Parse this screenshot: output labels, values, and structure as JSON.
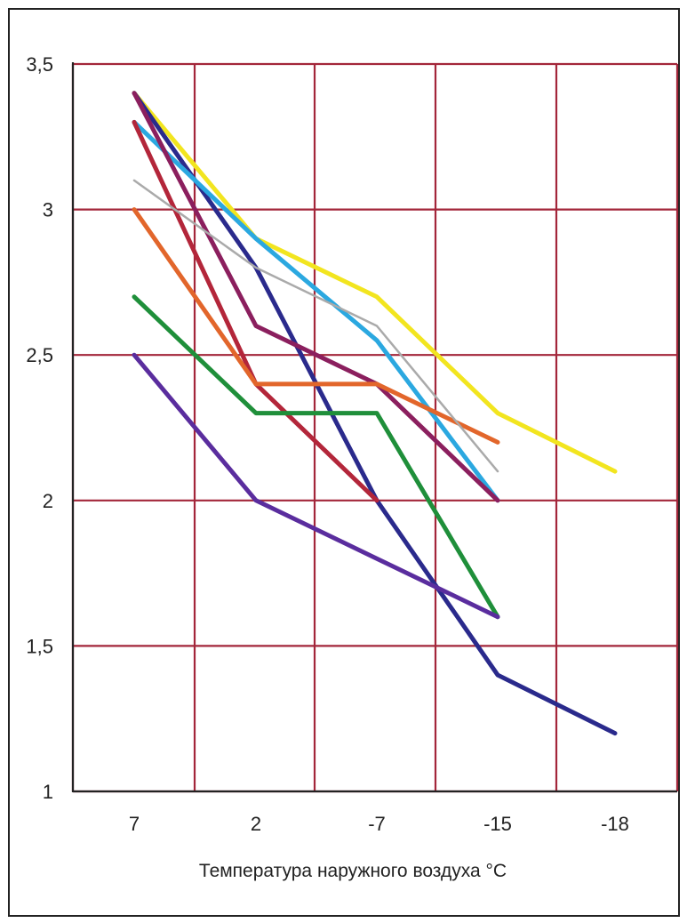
{
  "chart_data": {
    "type": "line",
    "title": "",
    "xlabel": "Температура наружного воздуха °С",
    "ylabel": "",
    "categories": [
      "7",
      "2",
      "-7",
      "-15",
      "-18"
    ],
    "y_tick_labels": [
      "1",
      "1,5",
      "2",
      "2,5",
      "3",
      "3,5"
    ],
    "y_ticks": [
      1,
      1.5,
      2,
      2.5,
      3,
      3.5
    ],
    "ylim": [
      1,
      3.5
    ],
    "grid": true,
    "legend": "none",
    "series": [
      {
        "color": "#f2e51f",
        "values": [
          3.4,
          2.9,
          2.7,
          2.3,
          2.1
        ]
      },
      {
        "color": "#2a2a8c",
        "values": [
          3.4,
          2.8,
          2.0,
          1.4,
          1.2
        ]
      },
      {
        "color": "#2ba8e0",
        "values": [
          3.3,
          2.9,
          2.55,
          2.0,
          null
        ]
      },
      {
        "color": "#8b1f5e",
        "values": [
          3.4,
          2.6,
          2.4,
          2.0,
          null
        ]
      },
      {
        "color": "#b3263a",
        "values": [
          3.3,
          2.4,
          2.0,
          null,
          null
        ]
      },
      {
        "color": "#e2662b",
        "values": [
          3.0,
          2.4,
          2.4,
          2.2,
          null
        ]
      },
      {
        "color": "#aaaaaa",
        "values": [
          3.1,
          2.8,
          2.6,
          2.1,
          null
        ]
      },
      {
        "color": "#1f8f3a",
        "values": [
          2.7,
          2.3,
          2.3,
          1.6,
          null
        ]
      },
      {
        "color": "#5a2d9e",
        "values": [
          2.5,
          2.0,
          1.8,
          1.6,
          null
        ]
      }
    ],
    "colors": {
      "grid": "#a3263a",
      "axis": "#222222"
    }
  }
}
